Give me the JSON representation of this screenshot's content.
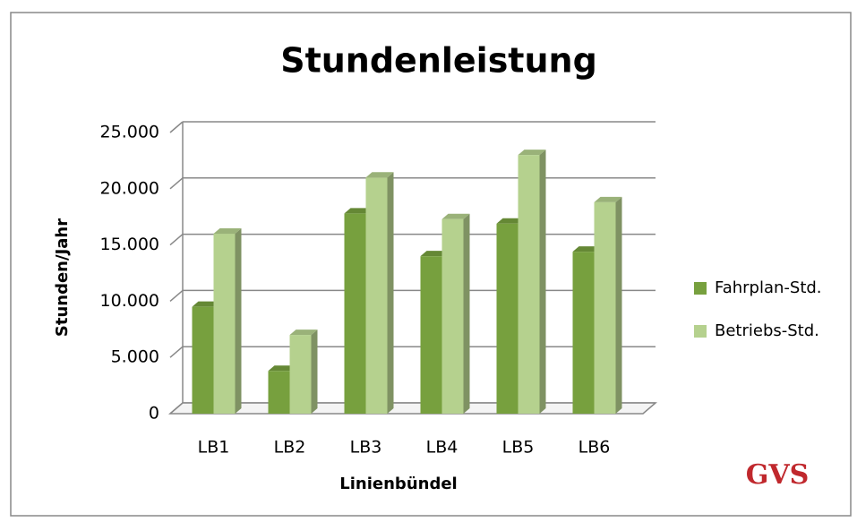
{
  "chart_data": {
    "type": "bar",
    "title": "Stundenleistung",
    "x_label": "Linienbündel",
    "y_label": "Stunden/Jahr",
    "categories": [
      "LB1",
      "LB2",
      "LB3",
      "LB4",
      "LB5",
      "LB6"
    ],
    "series": [
      {
        "name": "Fahrplan-Std.",
        "color": "#77a03e",
        "values": [
          9500,
          3800,
          17800,
          14000,
          16900,
          14400
        ]
      },
      {
        "name": "Betriebs-Std.",
        "color": "#b5d18e",
        "values": [
          16000,
          7000,
          21000,
          17300,
          23000,
          18800
        ]
      }
    ],
    "ylim": [
      0,
      25000
    ],
    "yticks": [
      0,
      {
        "value": 5000,
        "label": "5.000"
      },
      {
        "value": 10000,
        "label": "10.000"
      },
      {
        "value": 15000,
        "label": "15.000"
      },
      {
        "value": 20000,
        "label": "20.000"
      },
      {
        "value": 25000,
        "label": "25.000"
      }
    ],
    "grid": true,
    "legend": "right",
    "logo": "GVS"
  }
}
